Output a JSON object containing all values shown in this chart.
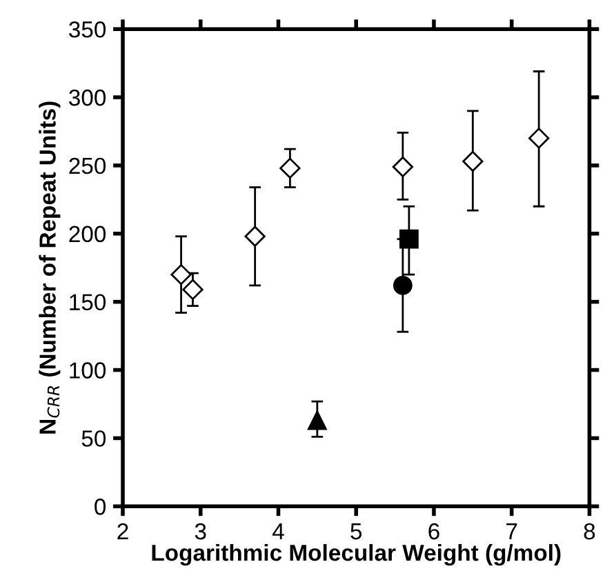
{
  "chart_data": {
    "type": "scatter",
    "xlabel": "Logarithmic Molecular Weight (g/mol)",
    "ylabel": "N$_{CRR}$ (Number of Repeat Units)",
    "xlim": [
      2,
      8
    ],
    "xticks": [
      2,
      3,
      4,
      5,
      6,
      7,
      8
    ],
    "ylim": [
      0,
      350
    ],
    "yticks": [
      0,
      50,
      100,
      150,
      200,
      250,
      300,
      350
    ],
    "grid": false,
    "legend": false,
    "series": [
      {
        "color": "#000000",
        "marker": "diamond",
        "x": [
          2.75,
          2.9,
          3.7,
          4.15,
          5.6,
          6.5,
          7.35
        ],
        "values": [
          170,
          159,
          198,
          248,
          249,
          253,
          270
        ],
        "errors": [
          [
            142,
            198
          ],
          [
            147,
            171
          ],
          [
            162,
            234
          ],
          [
            234,
            262
          ],
          [
            225,
            274
          ],
          [
            217,
            290
          ],
          [
            220,
            319
          ]
        ]
      },
      {
        "color": "#000000",
        "marker": "circle",
        "x": [
          5.6
        ],
        "values": [
          162
        ],
        "errors": [
          [
            128,
            196
          ]
        ]
      },
      {
        "color": "#000000",
        "marker": "square",
        "x": [
          5.68
        ],
        "values": [
          196
        ],
        "errors": [
          [
            170,
            220
          ]
        ]
      },
      {
        "color": "#000000",
        "marker": "triangle",
        "x": [
          4.5
        ],
        "values": [
          63
        ],
        "errors": [
          [
            51,
            77
          ]
        ]
      }
    ]
  }
}
